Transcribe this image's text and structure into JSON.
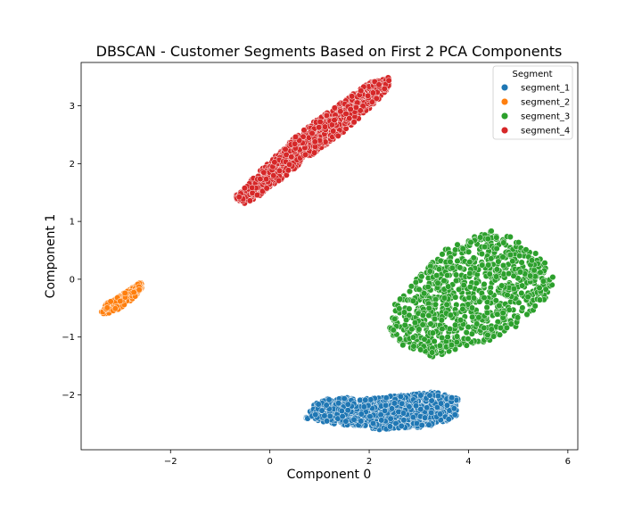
{
  "chart_data": {
    "type": "scatter",
    "title": "DBSCAN - Customer Segments Based on First 2 PCA Components",
    "xlabel": "Component 0",
    "ylabel": "Component 1",
    "xlim": [
      -3.8,
      6.2
    ],
    "ylim": [
      -2.95,
      3.75
    ],
    "xticks": [
      -2,
      0,
      2,
      4,
      6
    ],
    "yticks": [
      -2,
      -1,
      0,
      1,
      2,
      3
    ],
    "grid": false,
    "legend": {
      "title": "Segment",
      "placement": "top-right"
    },
    "series": [
      {
        "name": "segment_1",
        "color": "#1f77b4",
        "shape": "ellipse",
        "center": [
          2.2,
          -2.28
        ],
        "extent": [
          [
            0.7,
            -2.4
          ],
          [
            0.9,
            -2.15
          ],
          [
            1.2,
            -2.05
          ],
          [
            2.0,
            -2.05
          ],
          [
            2.8,
            -2.0
          ],
          [
            3.3,
            -1.95
          ],
          [
            3.8,
            -2.05
          ],
          [
            3.75,
            -2.4
          ],
          [
            3.2,
            -2.55
          ],
          [
            2.2,
            -2.6
          ],
          [
            1.3,
            -2.5
          ],
          [
            0.9,
            -2.45
          ]
        ]
      },
      {
        "name": "segment_2",
        "color": "#ff7f0e",
        "shape": "ellipse",
        "center": [
          -2.95,
          -0.32
        ],
        "extent": [
          [
            -3.4,
            -0.58
          ],
          [
            -3.3,
            -0.42
          ],
          [
            -3.0,
            -0.28
          ],
          [
            -2.75,
            -0.12
          ],
          [
            -2.6,
            -0.05
          ],
          [
            -2.55,
            -0.12
          ],
          [
            -2.7,
            -0.3
          ],
          [
            -3.0,
            -0.5
          ],
          [
            -3.3,
            -0.62
          ]
        ]
      },
      {
        "name": "segment_3",
        "color": "#2ca02c",
        "shape": "ellipse",
        "center": [
          4.2,
          -0.3
        ],
        "extent": [
          [
            2.4,
            -0.9
          ],
          [
            2.5,
            -0.45
          ],
          [
            3.0,
            0.1
          ],
          [
            3.5,
            0.5
          ],
          [
            4.0,
            0.7
          ],
          [
            4.5,
            0.85
          ],
          [
            5.0,
            0.7
          ],
          [
            5.5,
            0.35
          ],
          [
            5.75,
            0.0
          ],
          [
            5.5,
            -0.4
          ],
          [
            5.0,
            -0.8
          ],
          [
            4.5,
            -1.05
          ],
          [
            3.8,
            -1.2
          ],
          [
            3.3,
            -1.35
          ],
          [
            2.8,
            -1.25
          ]
        ]
      },
      {
        "name": "segment_4",
        "color": "#d62728",
        "shape": "band",
        "center": [
          0.9,
          2.4
        ],
        "extent": [
          [
            -0.75,
            1.42
          ],
          [
            -0.5,
            1.3
          ],
          [
            -0.2,
            1.45
          ],
          [
            0.5,
            1.9
          ],
          [
            1.0,
            2.25
          ],
          [
            1.5,
            2.55
          ],
          [
            2.0,
            2.95
          ],
          [
            2.4,
            3.3
          ],
          [
            2.4,
            3.5
          ],
          [
            2.0,
            3.4
          ],
          [
            1.5,
            3.1
          ],
          [
            1.0,
            2.8
          ],
          [
            0.5,
            2.45
          ],
          [
            0.0,
            2.05
          ],
          [
            -0.5,
            1.6
          ]
        ]
      }
    ]
  }
}
